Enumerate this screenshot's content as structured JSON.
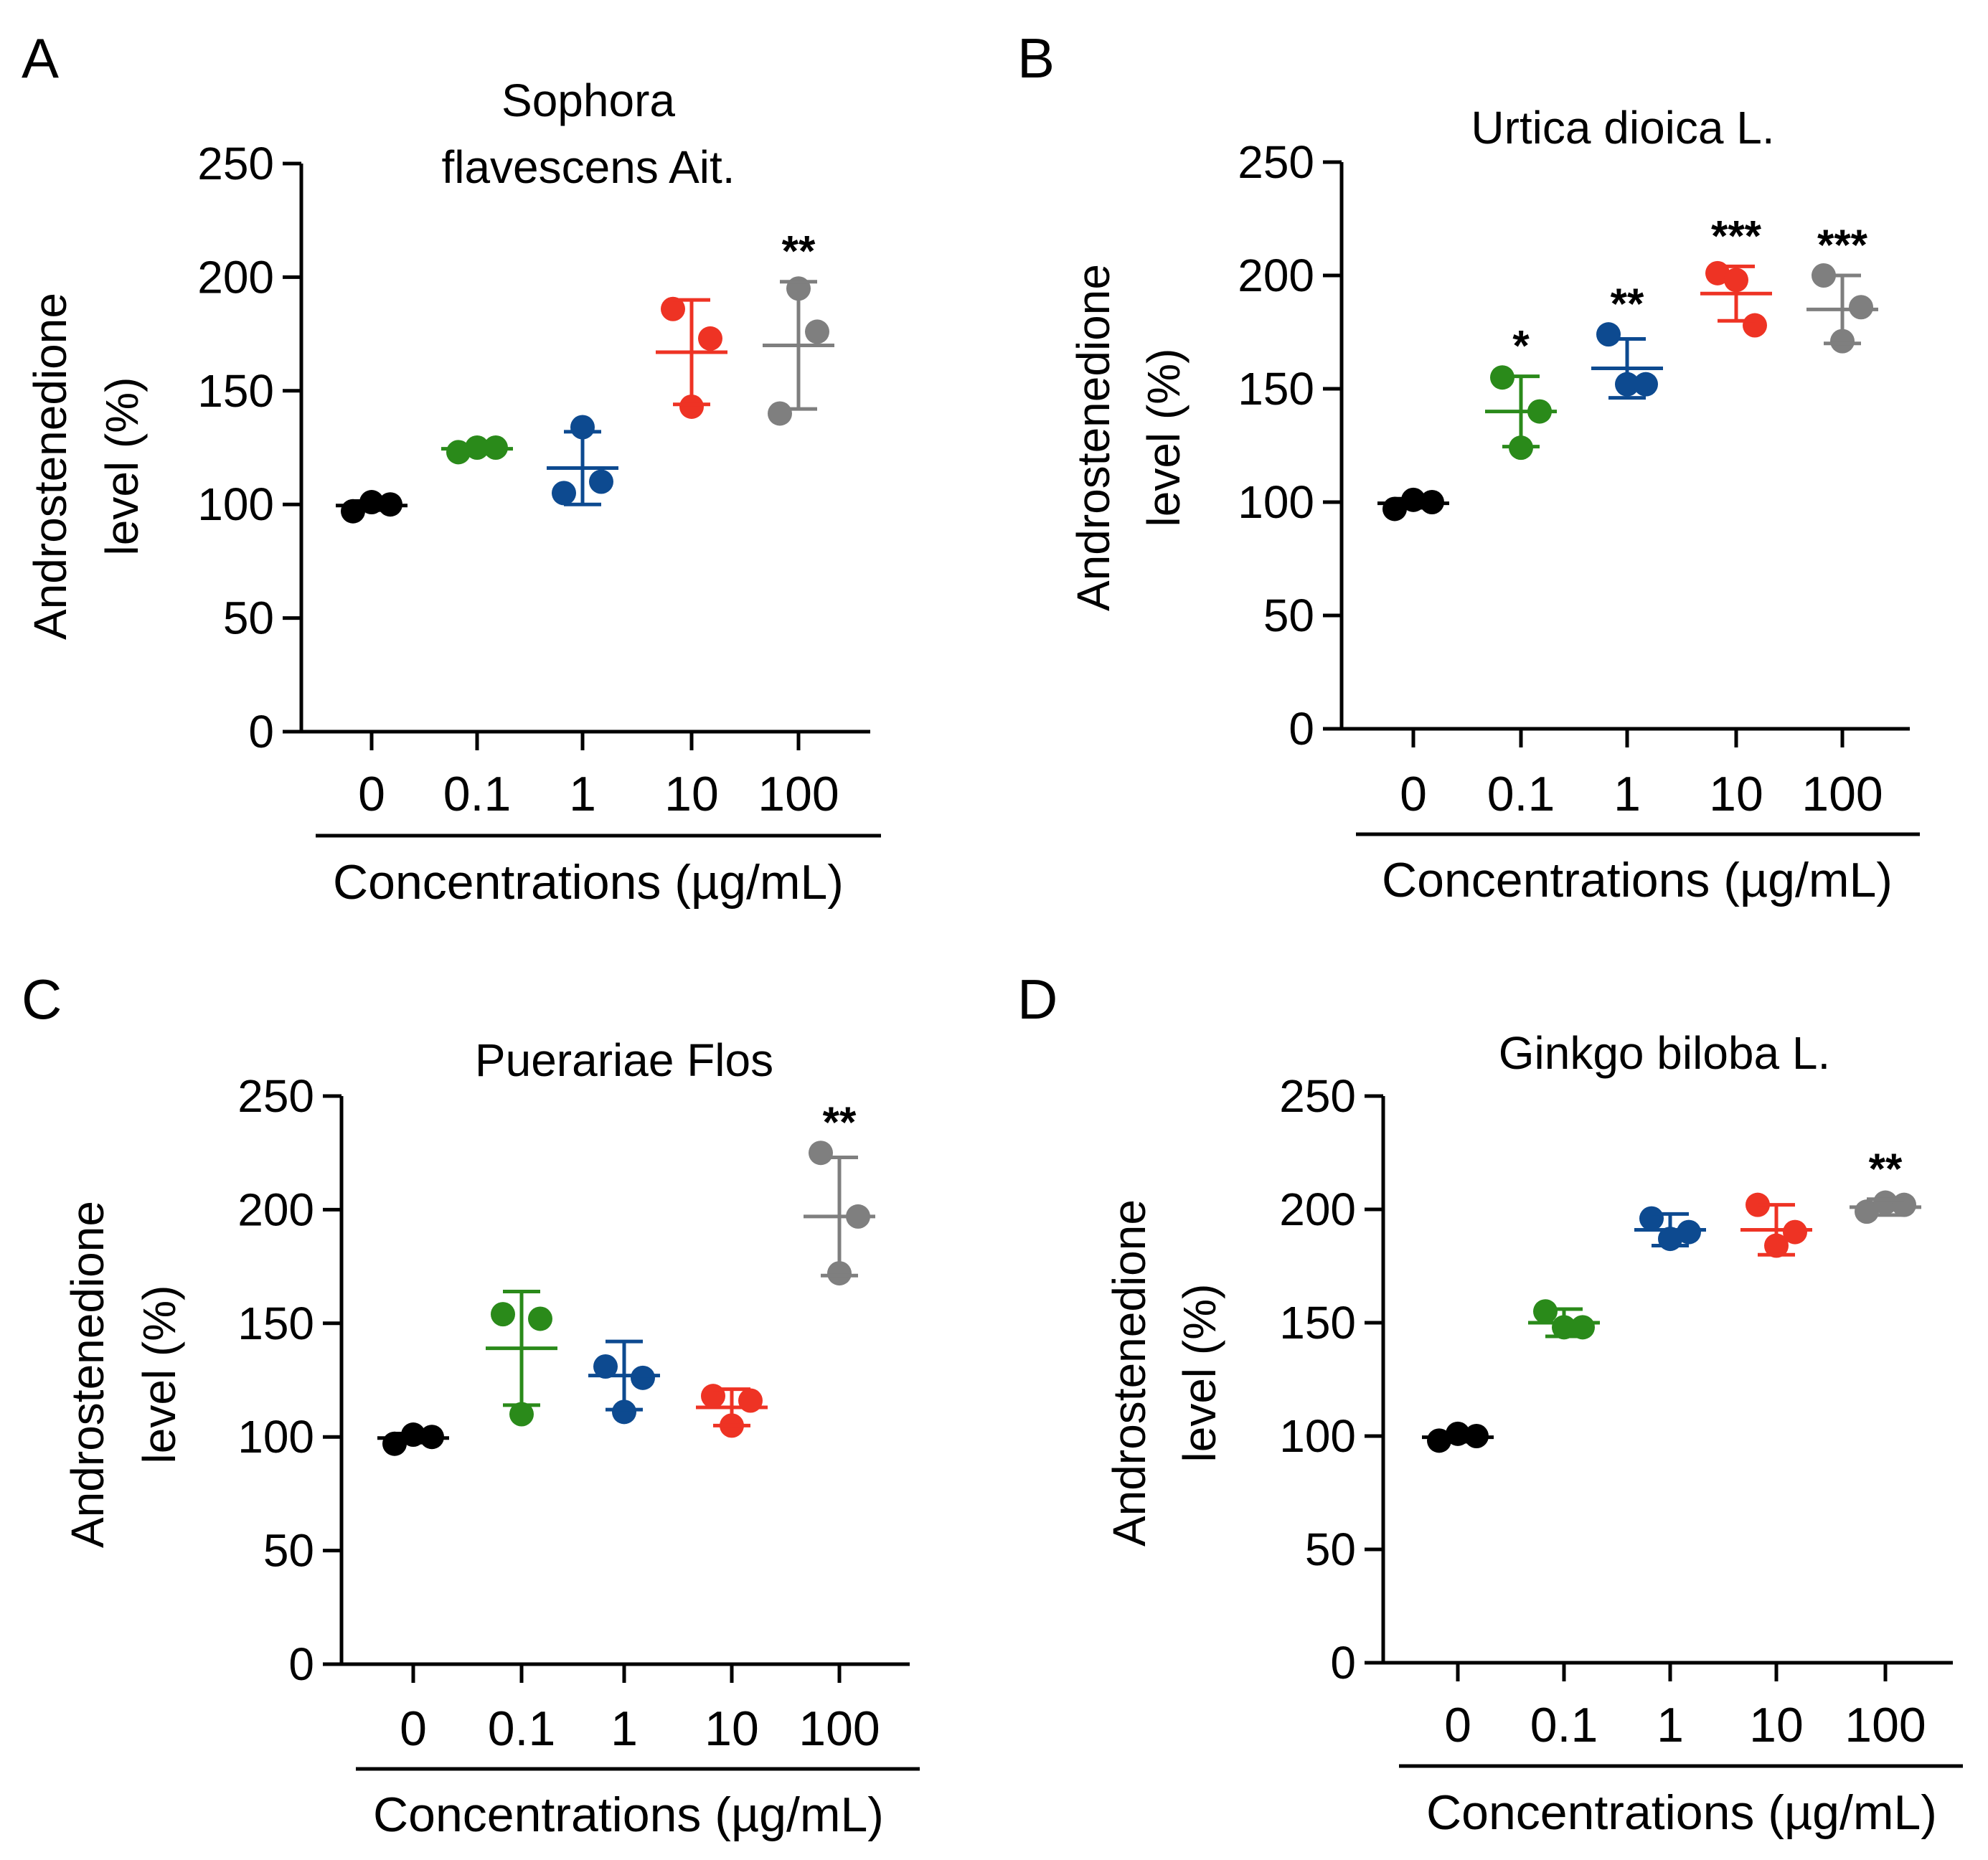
{
  "figure": {
    "colors": {
      "0": "#000000",
      "0.1": "#2a8a1a",
      "1": "#0d4a90",
      "10": "#ee3324",
      "100": "#7f7f7f"
    }
  },
  "chart_data": [
    {
      "panel": "A",
      "type": "scatter",
      "title_lines": [
        "Sophora",
        "flavescens Ait."
      ],
      "ylabel_lines": [
        "Androstenedione",
        "level (%)"
      ],
      "xlabel": "Concentrations (µg/mL)",
      "ylim": [
        0,
        250
      ],
      "yticks": [
        0,
        50,
        100,
        150,
        200,
        250
      ],
      "categories": [
        "0",
        "0.1",
        "1",
        "10",
        "100"
      ],
      "groups": [
        {
          "category": "0",
          "points": [
            97,
            101,
            100
          ],
          "mean": 99.5,
          "sd": 2,
          "sig": ""
        },
        {
          "category": "0.1",
          "points": [
            123,
            125,
            125
          ],
          "mean": 124.5,
          "sd": 1.2,
          "sig": ""
        },
        {
          "category": "1",
          "points": [
            105,
            134,
            110
          ],
          "mean": 116,
          "sd": 16,
          "sig": ""
        },
        {
          "category": "10",
          "points": [
            186,
            143,
            173
          ],
          "mean": 167,
          "sd": 23,
          "sig": ""
        },
        {
          "category": "100",
          "points": [
            140,
            195,
            176
          ],
          "mean": 170,
          "sd": 28,
          "sig": "**"
        }
      ]
    },
    {
      "panel": "B",
      "type": "scatter",
      "title_lines": [
        "Urtica dioica L."
      ],
      "ylabel_lines": [
        "Androstenedione",
        "level (%)"
      ],
      "xlabel": "Concentrations (µg/mL)",
      "ylim": [
        0,
        250
      ],
      "yticks": [
        0,
        50,
        100,
        150,
        200,
        250
      ],
      "categories": [
        "0",
        "0.1",
        "1",
        "10",
        "100"
      ],
      "groups": [
        {
          "category": "0",
          "points": [
            97,
            101,
            100
          ],
          "mean": 99.5,
          "sd": 2,
          "sig": ""
        },
        {
          "category": "0.1",
          "points": [
            155,
            124,
            140
          ],
          "mean": 140,
          "sd": 15.5,
          "sig": "*"
        },
        {
          "category": "1",
          "points": [
            174,
            152,
            152
          ],
          "mean": 159,
          "sd": 13,
          "sig": "**"
        },
        {
          "category": "10",
          "points": [
            201,
            198,
            178
          ],
          "mean": 192,
          "sd": 12,
          "sig": "***"
        },
        {
          "category": "100",
          "points": [
            200,
            171,
            186
          ],
          "mean": 185,
          "sd": 15,
          "sig": "***"
        }
      ]
    },
    {
      "panel": "C",
      "type": "scatter",
      "title_lines": [
        "Puerariae Flos"
      ],
      "ylabel_lines": [
        "Androstenedione",
        "level (%)"
      ],
      "xlabel": "Concentrations (µg/mL)",
      "ylim": [
        0,
        250
      ],
      "yticks": [
        0,
        50,
        100,
        150,
        200,
        250
      ],
      "categories": [
        "0",
        "0.1",
        "1",
        "10",
        "100"
      ],
      "groups": [
        {
          "category": "0",
          "points": [
            97,
            101,
            100
          ],
          "mean": 99.5,
          "sd": 2,
          "sig": ""
        },
        {
          "category": "0.1",
          "points": [
            154,
            110,
            152
          ],
          "mean": 139,
          "sd": 25,
          "sig": ""
        },
        {
          "category": "1",
          "points": [
            131,
            111,
            126
          ],
          "mean": 127,
          "sd": 15,
          "sig": ""
        },
        {
          "category": "10",
          "points": [
            118,
            105,
            116
          ],
          "mean": 113,
          "sd": 8,
          "sig": ""
        },
        {
          "category": "100",
          "points": [
            225,
            172,
            197
          ],
          "mean": 197,
          "sd": 26,
          "sig": "**"
        }
      ]
    },
    {
      "panel": "D",
      "type": "scatter",
      "title_lines": [
        "Ginkgo biloba L."
      ],
      "ylabel_lines": [
        "Androstenedione",
        "level (%)"
      ],
      "xlabel": "Concentrations (µg/mL)",
      "ylim": [
        0,
        250
      ],
      "yticks": [
        0,
        50,
        100,
        150,
        200,
        250
      ],
      "categories": [
        "0",
        "0.1",
        "1",
        "10",
        "100"
      ],
      "groups": [
        {
          "category": "0",
          "points": [
            98,
            101,
            100
          ],
          "mean": 99.5,
          "sd": 2,
          "sig": ""
        },
        {
          "category": "0.1",
          "points": [
            155,
            148,
            148
          ],
          "mean": 150,
          "sd": 6,
          "sig": ""
        },
        {
          "category": "1",
          "points": [
            196,
            187,
            190
          ],
          "mean": 191,
          "sd": 7,
          "sig": ""
        },
        {
          "category": "10",
          "points": [
            202,
            184,
            190
          ],
          "mean": 191,
          "sd": 11,
          "sig": ""
        },
        {
          "category": "100",
          "points": [
            199,
            203,
            202
          ],
          "mean": 201,
          "sd": 3.5,
          "sig": "**"
        }
      ]
    }
  ]
}
